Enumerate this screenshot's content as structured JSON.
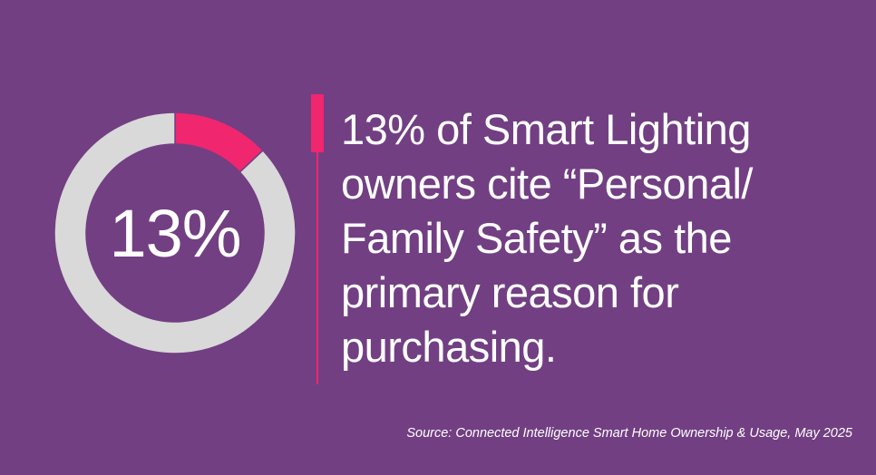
{
  "chart_data": {
    "type": "pie",
    "style": "donut",
    "center_label": "13%",
    "slices": [
      {
        "label": "Personal/Family Safety",
        "value": 13,
        "color": "#f0266f"
      },
      {
        "label": "",
        "value": 87,
        "color": "#d9d9d9"
      }
    ]
  },
  "headline": "13% of Smart Lighting owners cite “Personal/ Family Safety” as the primary reason for purchasing.",
  "source": "Source: Connected Intelligence Smart Home Ownership & Usage, May 2025",
  "colors": {
    "background": "#723f83",
    "accent": "#f0266f",
    "ring": "#d9d9d9",
    "text": "#ffffff"
  }
}
